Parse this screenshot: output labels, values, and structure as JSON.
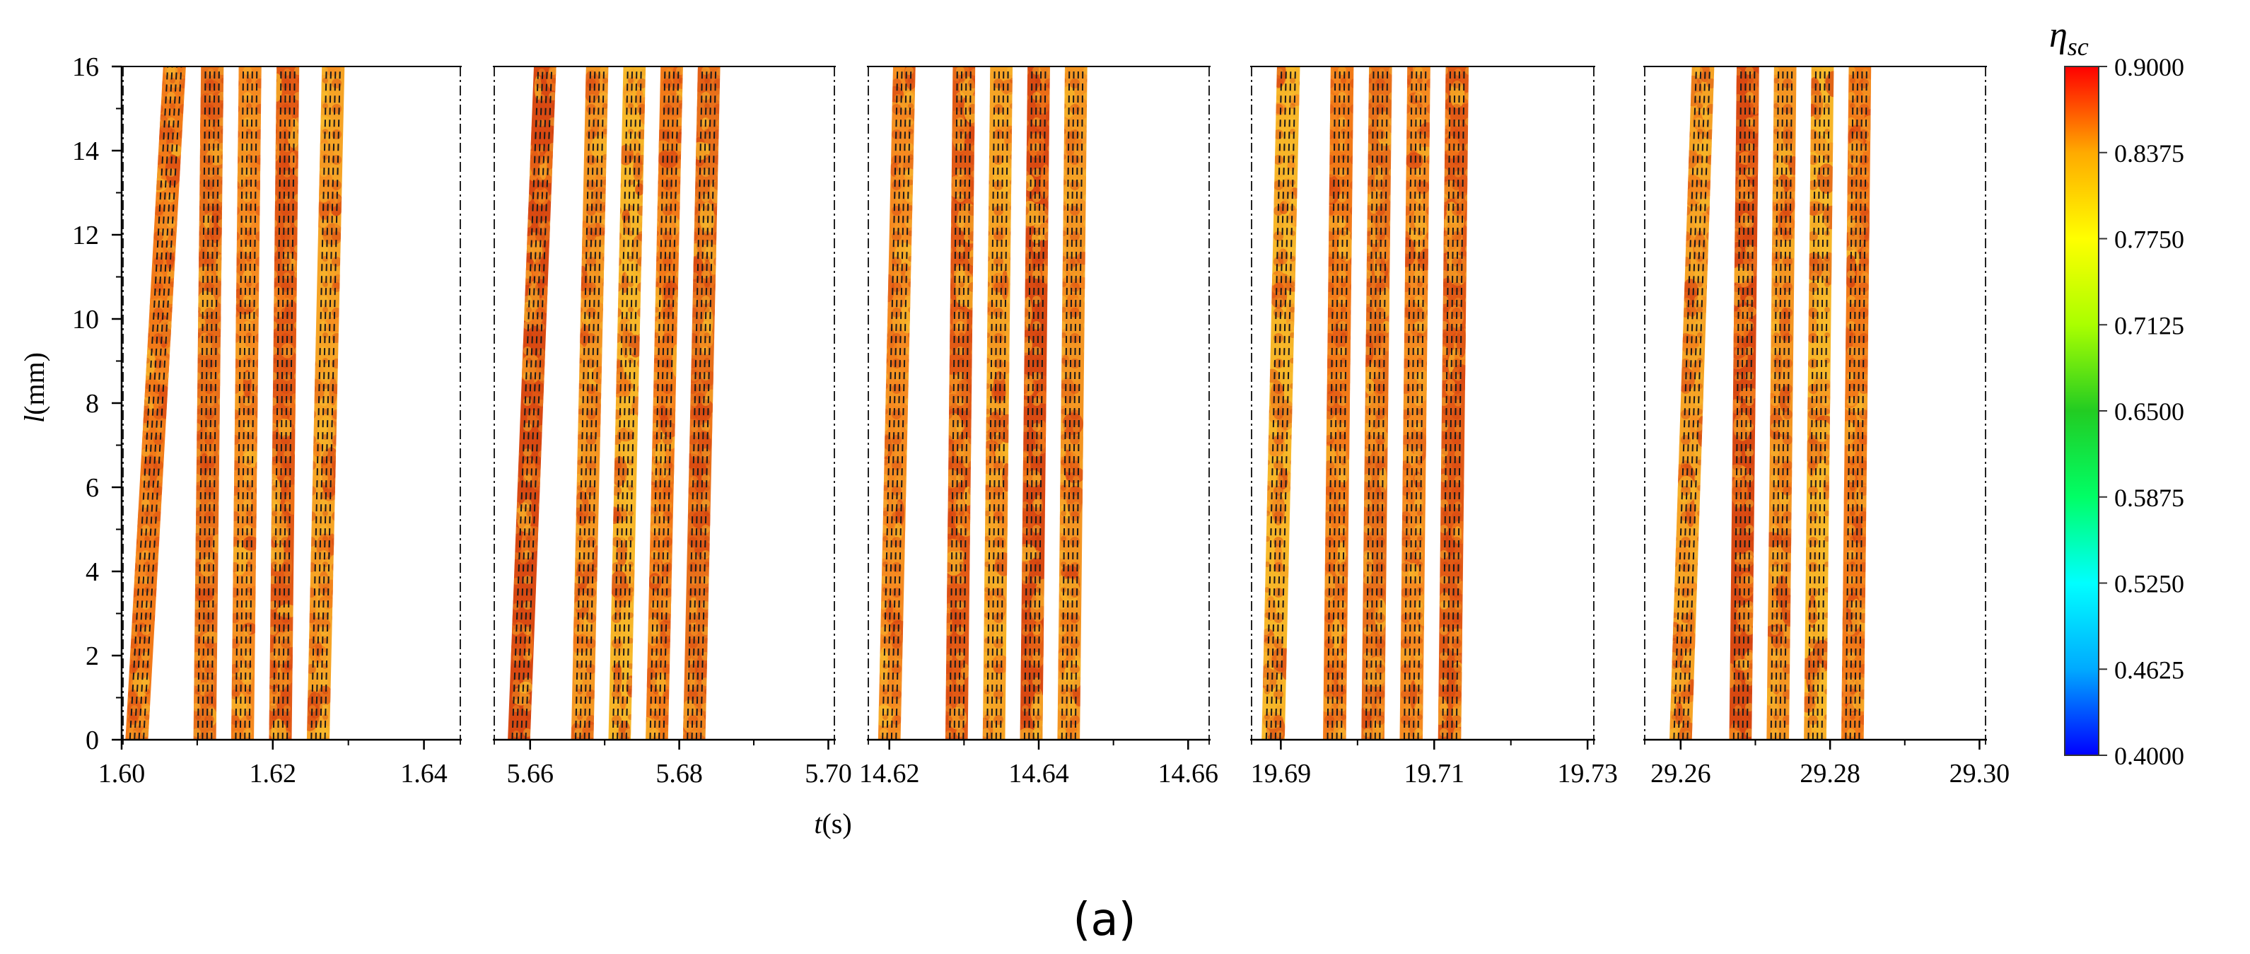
{
  "chart_data": {
    "type": "heatmap",
    "title": "",
    "xlabel": "t(s)",
    "xlabel_var": "t",
    "xlabel_unit": "(s)",
    "ylabel": "l(mm)",
    "ylabel_var": "l",
    "ylabel_unit": "(mm)",
    "ylim": [
      0,
      16
    ],
    "yticks": [
      "0",
      "2",
      "4",
      "6",
      "8",
      "10",
      "12",
      "14",
      "16"
    ],
    "grid": false,
    "panels": [
      {
        "xlim": [
          1.6,
          1.645
        ],
        "xticks": [
          1.6,
          1.62,
          1.64
        ],
        "xtick_labels": [
          "1.60",
          "1.62",
          "1.64"
        ],
        "strips": [
          {
            "x0": 1.6005,
            "x1": 1.6035,
            "t0": 1.6055,
            "t1": 1.6085
          },
          {
            "x0": 1.6095,
            "x1": 1.6125,
            "t0": 1.6105,
            "t1": 1.6135
          },
          {
            "x0": 1.6145,
            "x1": 1.6175,
            "t0": 1.6155,
            "t1": 1.6185
          },
          {
            "x0": 1.6195,
            "x1": 1.6225,
            "t0": 1.6205,
            "t1": 1.6235
          },
          {
            "x0": 1.6245,
            "x1": 1.6275,
            "t0": 1.6265,
            "t1": 1.6295
          }
        ]
      },
      {
        "xlim": [
          5.655,
          5.701
        ],
        "xticks": [
          5.66,
          5.68,
          5.7
        ],
        "xtick_labels": [
          "5.66",
          "5.68",
          "5.70"
        ],
        "strips": [
          {
            "x0": 5.657,
            "x1": 5.66,
            "t0": 5.6605,
            "t1": 5.6635
          },
          {
            "x0": 5.6655,
            "x1": 5.6685,
            "t0": 5.6675,
            "t1": 5.6705
          },
          {
            "x0": 5.6705,
            "x1": 5.6735,
            "t0": 5.6725,
            "t1": 5.6755
          },
          {
            "x0": 5.6755,
            "x1": 5.6785,
            "t0": 5.6775,
            "t1": 5.6805
          },
          {
            "x0": 5.6805,
            "x1": 5.6835,
            "t0": 5.6825,
            "t1": 5.6855
          }
        ]
      },
      {
        "xlim": [
          14.617,
          14.663
        ],
        "xticks": [
          14.62,
          14.64,
          14.66
        ],
        "xtick_labels": [
          "14.62",
          "14.64",
          "14.66"
        ],
        "strips": [
          {
            "x0": 14.6185,
            "x1": 14.6215,
            "t0": 14.6205,
            "t1": 14.6235
          },
          {
            "x0": 14.6275,
            "x1": 14.6305,
            "t0": 14.6285,
            "t1": 14.6315
          },
          {
            "x0": 14.6325,
            "x1": 14.6355,
            "t0": 14.6335,
            "t1": 14.6365
          },
          {
            "x0": 14.6375,
            "x1": 14.6405,
            "t0": 14.6385,
            "t1": 14.6415
          },
          {
            "x0": 14.6425,
            "x1": 14.6455,
            "t0": 14.6435,
            "t1": 14.6465
          }
        ]
      },
      {
        "xlim": [
          19.686,
          19.731
        ],
        "xticks": [
          19.69,
          19.71,
          19.73
        ],
        "xtick_labels": [
          "19.69",
          "19.71",
          "19.73"
        ],
        "strips": [
          {
            "x0": 19.6875,
            "x1": 19.6905,
            "t0": 19.6895,
            "t1": 19.6925
          },
          {
            "x0": 19.6955,
            "x1": 19.6985,
            "t0": 19.6965,
            "t1": 19.6995
          },
          {
            "x0": 19.7005,
            "x1": 19.7035,
            "t0": 19.7015,
            "t1": 19.7045
          },
          {
            "x0": 19.7055,
            "x1": 19.7085,
            "t0": 19.7065,
            "t1": 19.7095
          },
          {
            "x0": 19.7105,
            "x1": 19.7135,
            "t0": 19.7115,
            "t1": 19.7145
          }
        ]
      },
      {
        "xlim": [
          29.255,
          29.301
        ],
        "xticks": [
          29.26,
          29.28,
          29.3
        ],
        "xtick_labels": [
          "29.26",
          "29.28",
          "29.30"
        ],
        "strips": [
          {
            "x0": 29.2585,
            "x1": 29.2615,
            "t0": 29.2615,
            "t1": 29.2645
          },
          {
            "x0": 29.2665,
            "x1": 29.2695,
            "t0": 29.2675,
            "t1": 29.2705
          },
          {
            "x0": 29.2715,
            "x1": 29.2745,
            "t0": 29.2725,
            "t1": 29.2755
          },
          {
            "x0": 29.2765,
            "x1": 29.2795,
            "t0": 29.2775,
            "t1": 29.2805
          },
          {
            "x0": 29.2815,
            "x1": 29.2845,
            "t0": 29.2825,
            "t1": 29.2855
          }
        ]
      }
    ],
    "colorbar": {
      "title_symbol": "η",
      "title_sub": "sc",
      "min": 0.4,
      "max": 0.9,
      "labels": [
        "0.9000",
        "0.8375",
        "0.7750",
        "0.7125",
        "0.6500",
        "0.5875",
        "0.5250",
        "0.4625",
        "0.4000"
      ],
      "stops": [
        "#0000ff",
        "#00aaff",
        "#00ffff",
        "#00ff66",
        "#22cc22",
        "#aaff00",
        "#ffff00",
        "#ffaa00",
        "#ff0000"
      ]
    },
    "field_colors": [
      "#f27a18",
      "#e8701a",
      "#f58a20",
      "#e25a15",
      "#f6a425",
      "#d94a12",
      "#f49522",
      "#f7b628"
    ]
  },
  "caption": "(a)"
}
